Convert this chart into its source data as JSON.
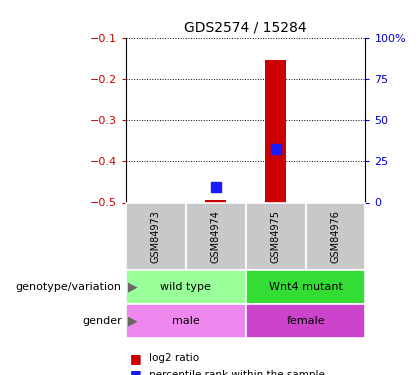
{
  "title": "GDS2574 / 15284",
  "samples": [
    "GSM84973",
    "GSM84974",
    "GSM84975",
    "GSM84976"
  ],
  "ylim": [
    -0.5,
    -0.1
  ],
  "yticks_left": [
    -0.5,
    -0.4,
    -0.3,
    -0.2,
    -0.1
  ],
  "yticks_right": [
    0,
    25,
    50,
    75,
    100
  ],
  "log2_ratio_top": [
    null,
    -0.493,
    -0.155,
    null
  ],
  "log2_ratio_base": [
    null,
    -0.5,
    -0.5,
    null
  ],
  "percentile_rank": [
    null,
    -0.462,
    -0.37,
    null
  ],
  "bar_color": "#cc0000",
  "dot_color": "#1a1aff",
  "left_axis_color": "#cc0000",
  "right_axis_color": "#0000cc",
  "grid_color": "#000000",
  "genotype_labels": [
    [
      "wild type",
      0,
      2
    ],
    [
      "Wnt4 mutant",
      2,
      4
    ]
  ],
  "genotype_colors": [
    "#99ff99",
    "#33dd33"
  ],
  "gender_labels": [
    [
      "male",
      0,
      2
    ],
    [
      "female",
      2,
      4
    ]
  ],
  "gender_colors": [
    "#ee88ee",
    "#cc44cc"
  ],
  "sample_box_color": "#c8c8c8",
  "legend_red_label": "log2 ratio",
  "legend_blue_label": "percentile rank within the sample",
  "bar_width": 0.35,
  "dot_size": 55,
  "title_fontsize": 10,
  "axis_fontsize": 8,
  "sample_fontsize": 7,
  "annot_fontsize": 8,
  "label_fontsize": 8
}
